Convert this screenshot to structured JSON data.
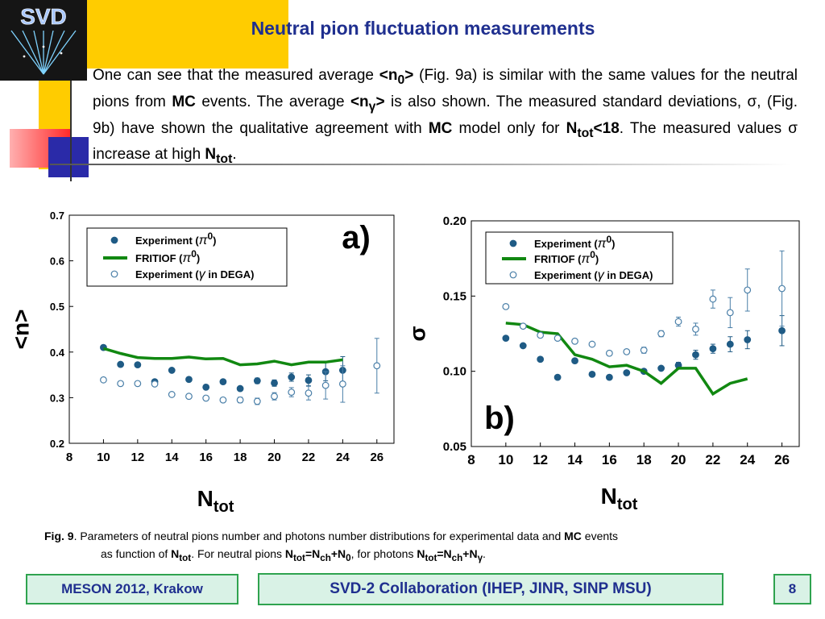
{
  "slide": {
    "title": "Neutral pion fluctuation measurements",
    "logo_text": "SVD",
    "paragraph": {
      "t1": "One can see that the measured average ",
      "b1": "<n",
      "b1sub": "0",
      "b1end": ">",
      "t2": " (Fig. 9a) is similar with the same values for the neutral pions from ",
      "b2": "MC",
      "t3": " events. The average ",
      "b3": "<n",
      "b3sub": "γ",
      "b3end": ">",
      "t4": " is also shown. The measured standard deviations, ",
      "sym1": "σ",
      "t5": ", (Fig. 9b) have shown the qualitative agreement with ",
      "b4": "MC",
      "t6": " model only for ",
      "b5": "N",
      "b5sub": "tot",
      "b5end": "<18",
      "t7": ". The measured values ",
      "sym2": "σ",
      "t8": " increase at high ",
      "b6": "N",
      "b6sub": "tot",
      "t9": "."
    },
    "caption": {
      "fig": "Fig. 9",
      "t1": ". Parameters of neutral pions number and photons number distributions for experimental data and ",
      "mc": "MC",
      "t2": " events",
      "t3": "as function of ",
      "ntot": "N",
      "ntot_sub": "tot",
      "t4": ".      For neutral pions ",
      "f1a": "N",
      "f1a_sub": "tot",
      "f1b": "=N",
      "f1b_sub": "ch",
      "f1c": "+N",
      "f1c_sub": "0",
      "t5": ", for photons ",
      "f2a": "N",
      "f2a_sub": "tot",
      "f2b": "=N",
      "f2b_sub": "ch",
      "f2c": "+N",
      "f2c_sub": "γ",
      "t6": "."
    },
    "footer": {
      "conference": "MESON 2012, Krakow",
      "collaboration": "SVD-2 Collaboration (IHEP, JINR, SINP MSU)",
      "page": "8"
    }
  },
  "colors": {
    "title": "#1f2f8f",
    "experiment": "#1f5b85",
    "fritiof": "#118811",
    "footer_bg": "#d9f2e6",
    "footer_border": "#2fa34f"
  },
  "chart_data": [
    {
      "type": "scatter",
      "panel_label": "a)",
      "ylabel": "<n>",
      "xlabel": "N",
      "xlabel_sub": "tot",
      "xlim": [
        8,
        27
      ],
      "ylim": [
        0.2,
        0.7
      ],
      "xticks": [
        "8",
        "10",
        "12",
        "14",
        "16",
        "18",
        "20",
        "22",
        "24",
        "26"
      ],
      "yticks": [
        "0.2",
        "0.3",
        "0.4",
        "0.5",
        "0.6",
        "0.7"
      ],
      "legend_position": "top-left",
      "legend": [
        {
          "label": "Experiment (",
          "sym": "π",
          "sup": "0",
          "end": ")"
        },
        {
          "label": "FRITIOF  (",
          "sym": "π",
          "sup": "0",
          "end": ")"
        },
        {
          "label": "Experiment (",
          "sym": "γ",
          "sup": "",
          "end": " in DEGA)"
        }
      ],
      "series": [
        {
          "name": "Experiment (π0)",
          "style": "filled",
          "x": [
            10,
            11,
            12,
            13,
            14,
            15,
            16,
            17,
            18,
            19,
            20,
            21,
            22,
            23,
            24
          ],
          "y": [
            0.41,
            0.373,
            0.372,
            0.335,
            0.36,
            0.34,
            0.323,
            0.335,
            0.32,
            0.337,
            0.332,
            0.345,
            0.338,
            0.357,
            0.36
          ],
          "err": [
            0.003,
            0.003,
            0.003,
            0.003,
            0.004,
            0.004,
            0.005,
            0.005,
            0.005,
            0.006,
            0.007,
            0.009,
            0.012,
            0.02,
            0.03
          ]
        },
        {
          "name": "FRITIOF (π0)",
          "style": "line",
          "x": [
            10,
            11,
            12,
            13,
            14,
            15,
            16,
            17,
            18,
            19,
            20,
            21,
            22,
            23,
            24
          ],
          "y": [
            0.408,
            0.397,
            0.388,
            0.386,
            0.386,
            0.389,
            0.385,
            0.386,
            0.372,
            0.374,
            0.38,
            0.372,
            0.378,
            0.378,
            0.383
          ]
        },
        {
          "name": "Experiment (γ in DEGA)",
          "style": "open",
          "x": [
            10,
            11,
            12,
            13,
            14,
            15,
            16,
            17,
            18,
            19,
            20,
            21,
            22,
            23,
            24,
            26
          ],
          "y": [
            0.339,
            0.331,
            0.331,
            0.33,
            0.307,
            0.303,
            0.299,
            0.295,
            0.295,
            0.292,
            0.303,
            0.312,
            0.31,
            0.327,
            0.33,
            0.37
          ],
          "err": [
            0.003,
            0.003,
            0.003,
            0.003,
            0.004,
            0.004,
            0.005,
            0.005,
            0.006,
            0.007,
            0.008,
            0.01,
            0.015,
            0.03,
            0.04,
            0.06
          ]
        }
      ]
    },
    {
      "type": "scatter",
      "panel_label": "b)",
      "ylabel": "σ",
      "xlabel": "N",
      "xlabel_sub": "tot",
      "xlim": [
        8,
        27
      ],
      "ylim": [
        0.05,
        0.2
      ],
      "xticks": [
        "8",
        "10",
        "12",
        "14",
        "16",
        "18",
        "20",
        "22",
        "24",
        "26"
      ],
      "yticks": [
        "0.05",
        "0.10",
        "0.15",
        "0.20"
      ],
      "legend_position": "top-left",
      "legend": [
        {
          "label": "Experiment (",
          "sym": "π",
          "sup": "0",
          "end": ")"
        },
        {
          "label": "FRITIOF  (",
          "sym": "π",
          "sup": "0",
          "end": ")"
        },
        {
          "label": "Experiment (",
          "sym": "γ",
          "sup": "",
          "end": " in DEGA)"
        }
      ],
      "series": [
        {
          "name": "Experiment (π0)",
          "style": "filled",
          "x": [
            10,
            11,
            12,
            13,
            14,
            15,
            16,
            17,
            18,
            19,
            20,
            21,
            22,
            23,
            24,
            26
          ],
          "y": [
            0.122,
            0.117,
            0.108,
            0.096,
            0.107,
            0.098,
            0.096,
            0.099,
            0.1,
            0.102,
            0.104,
            0.111,
            0.115,
            0.118,
            0.121,
            0.127
          ],
          "err": [
            0.001,
            0.001,
            0.001,
            0.001,
            0.001,
            0.001,
            0.001,
            0.001,
            0.001,
            0.001,
            0.002,
            0.003,
            0.003,
            0.005,
            0.006,
            0.01
          ]
        },
        {
          "name": "FRITIOF (π0)",
          "style": "line",
          "x": [
            10,
            11,
            12,
            13,
            14,
            15,
            16,
            17,
            18,
            19,
            20,
            21,
            22,
            23,
            24
          ],
          "y": [
            0.132,
            0.131,
            0.126,
            0.125,
            0.111,
            0.108,
            0.103,
            0.104,
            0.1,
            0.092,
            0.102,
            0.102,
            0.085,
            0.092,
            0.095
          ]
        },
        {
          "name": "Experiment (γ in DEGA)",
          "style": "open",
          "x": [
            10,
            11,
            12,
            13,
            14,
            15,
            16,
            17,
            18,
            19,
            20,
            21,
            22,
            23,
            24,
            26
          ],
          "y": [
            0.143,
            0.13,
            0.124,
            0.122,
            0.12,
            0.118,
            0.112,
            0.113,
            0.114,
            0.125,
            0.133,
            0.128,
            0.148,
            0.139,
            0.154,
            0.155
          ],
          "err": [
            0.001,
            0.001,
            0.001,
            0.001,
            0.001,
            0.001,
            0.001,
            0.001,
            0.002,
            0.002,
            0.003,
            0.004,
            0.006,
            0.01,
            0.014,
            0.025
          ]
        }
      ]
    }
  ]
}
